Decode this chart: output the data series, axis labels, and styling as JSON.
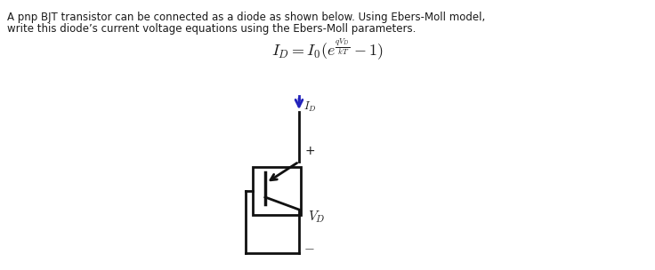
{
  "bg_color": "#ffffff",
  "text_line1": "A pnp BJT transistor can be connected as a diode as shown below. Using Ebers-Moll model,",
  "text_line2": "write this diode’s current voltage equations using the Ebers-Moll parameters.",
  "formula": "$I_D = I_0(e^{\\frac{qV_D}{kT}} - 1)$",
  "arrow_color": "#2222bb",
  "circuit_color": "#111111",
  "text_color": "#1a1a1a",
  "fig_width": 7.36,
  "fig_height": 3.04,
  "dpi": 100
}
